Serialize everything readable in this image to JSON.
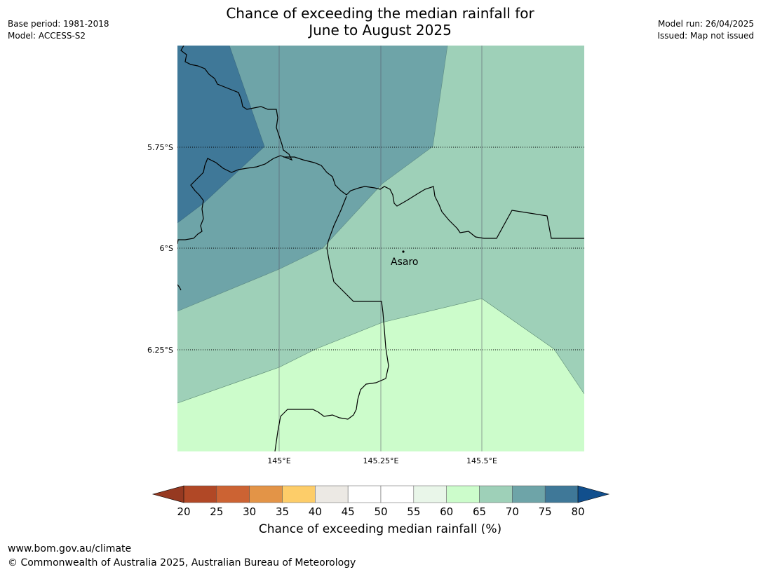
{
  "header": {
    "base_period": "Base period: 1981-2018",
    "model": "Model: ACCESS-S2",
    "model_run": "Model run: 26/04/2025",
    "issued": "Issued: Map not issued",
    "title_line1": "Chance of exceeding the median rainfall for",
    "title_line2": "June to August 2025"
  },
  "map": {
    "lat_labels": [
      "5.75°S",
      "6°S",
      "6.25°S"
    ],
    "lon_labels": [
      "145°E",
      "145.25°E",
      "145.5°E"
    ],
    "places": [
      {
        "name": "Asaro",
        "lon": 145.31,
        "lat": -6.01
      }
    ],
    "zone_colors": {
      "75-80": "#3f7898",
      "70-75": "#6ea4a8",
      "65-70": "#9ed0b8",
      "60-65": "#ccfccb"
    }
  },
  "colorbar": {
    "title": "Chance of exceeding median rainfall (%)",
    "ticks": [
      "20",
      "25",
      "30",
      "35",
      "40",
      "45",
      "50",
      "55",
      "60",
      "65",
      "70",
      "75",
      "80"
    ],
    "below_color": "#963921",
    "above_color": "#114f8d",
    "colors": [
      "#b14826",
      "#cc6333",
      "#e39447",
      "#fdcd69",
      "#ece9e4",
      "#ffffff",
      "#ffffff",
      "#e9f6e9",
      "#ccfccb",
      "#9ed0b8",
      "#6ea4a8",
      "#3f7898"
    ]
  },
  "footer": {
    "url": "www.bom.gov.au/climate",
    "copyright": "© Commonwealth of Australia 2025, Australian Bureau of Meteorology"
  }
}
